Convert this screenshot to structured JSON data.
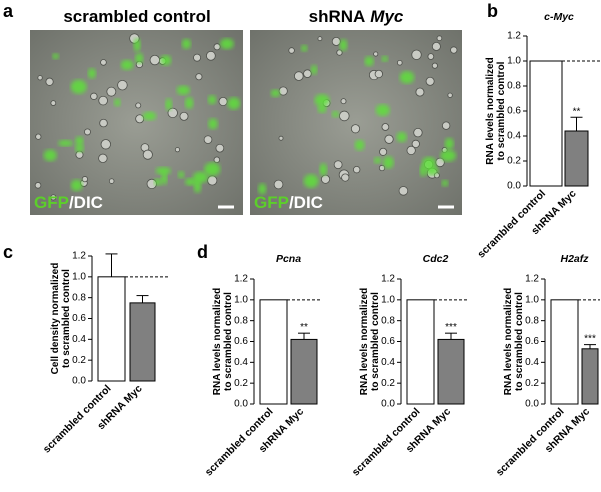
{
  "panel_labels": [
    "a",
    "b",
    "c",
    "d"
  ],
  "images": [
    {
      "title": "scrambled control",
      "channel": "GFP",
      "channel2": "/DIC"
    },
    {
      "title": "shRNA",
      "title_italic": "Myc",
      "channel": "GFP",
      "channel2": "/DIC"
    }
  ],
  "chart_data": [
    {
      "type": "bar",
      "title": "c-Myc",
      "ylabel": [
        "RNA levels normalized",
        "to scrambled control"
      ],
      "categories": [
        "scrambled control",
        "shRNA Myc"
      ],
      "values": [
        1.0,
        0.44
      ],
      "errors": [
        0,
        0.11
      ],
      "colors": [
        "#ffffff",
        "#808080"
      ],
      "significance": {
        "index": 1,
        "label": "**"
      },
      "reference_line": 1.0,
      "ylim": [
        0,
        1.2
      ],
      "yticks": [
        {
          "value": 0,
          "label": "0.0"
        },
        0.2,
        0.4,
        0.6,
        0.8,
        {
          "value": 1,
          "label": "1.0"
        },
        1.2
      ]
    },
    {
      "type": "bar",
      "ylabel": [
        "Cell density normalized",
        "to scrambled control"
      ],
      "categories": [
        "scrambled control",
        "shRNA Myc"
      ],
      "values": [
        1.0,
        0.75
      ],
      "errors": [
        0.22,
        0.07
      ],
      "colors": [
        "#ffffff",
        "#808080"
      ],
      "reference_line": 1.0,
      "ylim": [
        0,
        1.2
      ],
      "yticks": [
        {
          "value": 0,
          "label": "0.0"
        },
        0.2,
        0.4,
        0.6,
        0.8,
        {
          "value": 1,
          "label": "1.0"
        },
        1.2
      ]
    },
    {
      "type": "bar",
      "title": "Pcna",
      "ylabel": [
        "RNA levels normalized",
        "to scrambled control"
      ],
      "categories": [
        "scrambled control",
        "shRNA Myc"
      ],
      "values": [
        1.0,
        0.62
      ],
      "errors": [
        0,
        0.06
      ],
      "colors": [
        "#ffffff",
        "#808080"
      ],
      "significance": {
        "index": 1,
        "label": "**"
      },
      "reference_line": 1.0,
      "ylim": [
        0,
        1.2
      ],
      "yticks": [
        {
          "value": 0,
          "label": "0.0"
        },
        0.2,
        0.4,
        0.6,
        0.8,
        {
          "value": 1,
          "label": "1.0"
        },
        1.2
      ]
    },
    {
      "type": "bar",
      "title": "Cdc2",
      "ylabel": [
        "RNA levels normalized",
        "to scrambled control"
      ],
      "categories": [
        "scrambled control",
        "shRNA Myc"
      ],
      "values": [
        1.0,
        0.62
      ],
      "errors": [
        0,
        0.06
      ],
      "colors": [
        "#ffffff",
        "#808080"
      ],
      "significance": {
        "index": 1,
        "label": "***"
      },
      "reference_line": 1.0,
      "ylim": [
        0,
        1.2
      ],
      "yticks": [
        {
          "value": 0,
          "label": "0.0"
        },
        0.2,
        0.4,
        0.6,
        0.8,
        {
          "value": 1,
          "label": "1.0"
        },
        1.2
      ]
    },
    {
      "type": "bar",
      "title": "H2afz",
      "ylabel": [
        "RNA levels normalized",
        "to scrambled control"
      ],
      "categories": [
        "scrambled control",
        "shRNA Myc"
      ],
      "values": [
        1.0,
        0.53
      ],
      "errors": [
        0,
        0.04
      ],
      "colors": [
        "#ffffff",
        "#808080"
      ],
      "significance": {
        "index": 1,
        "label": "***"
      },
      "reference_line": 1.0,
      "ylim": [
        0,
        1.2
      ],
      "yticks": [
        {
          "value": 0,
          "label": "0.0"
        },
        0.2,
        0.4,
        0.6,
        0.8,
        {
          "value": 1,
          "label": "1.0"
        },
        1.2
      ]
    }
  ]
}
